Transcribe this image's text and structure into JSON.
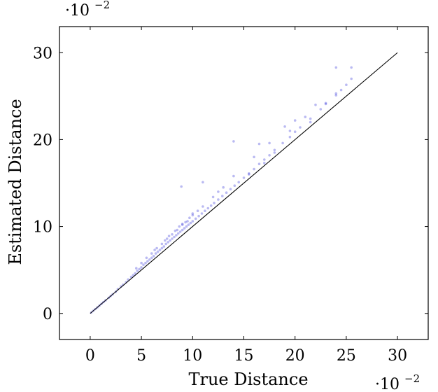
{
  "chart_data": {
    "type": "scatter",
    "title": "",
    "xlabel": "True Distance",
    "ylabel": "Estimated Distance",
    "x_scale_factor": "·10",
    "x_scale_exponent": "−2",
    "y_scale_factor": "·10",
    "y_scale_exponent": "−2",
    "xlim": [
      -3,
      33
    ],
    "ylim": [
      -3,
      33
    ],
    "xticks": [
      0,
      5,
      10,
      15,
      20,
      25,
      30
    ],
    "yticks": [
      0,
      10,
      20,
      30
    ],
    "xtick_labels": [
      "0",
      "5",
      "10",
      "15",
      "20",
      "25",
      "30"
    ],
    "ytick_labels": [
      "0",
      "10",
      "20",
      "30"
    ],
    "grid": false,
    "point_color": "#3a3adb",
    "line_color": "#000000",
    "reference_line": {
      "x": [
        0,
        30
      ],
      "y": [
        0,
        30
      ]
    },
    "series": [
      {
        "type": "scatter",
        "x": [
          0.1,
          0.3,
          0.5,
          0.7,
          0.9,
          1.1,
          1.3,
          1.5,
          1.8,
          2.0,
          2.2,
          2.5,
          2.7,
          3.0,
          3.2,
          3.5,
          3.7,
          4.0,
          4.2,
          4.4,
          4.6,
          4.8,
          5.0,
          5.2,
          5.4,
          5.6,
          5.8,
          6.0,
          6.2,
          6.4,
          6.6,
          6.8,
          7.0,
          7.2,
          7.4,
          7.6,
          7.8,
          8.0,
          8.2,
          8.4,
          8.6,
          8.8,
          9.0,
          9.2,
          9.4,
          9.6,
          9.8,
          10.0,
          10.3,
          10.6,
          10.9,
          11.2,
          11.5,
          11.8,
          12.1,
          12.5,
          12.9,
          13.3,
          13.7,
          14.1,
          14.5,
          15.0,
          15.5,
          16.0,
          16.5,
          17.0,
          17.5,
          18.0,
          18.8,
          19.5,
          20.0,
          20.5,
          21.5,
          22.5,
          23.0,
          24.0,
          24.5,
          25.0,
          25.5,
          4.5,
          5.5,
          6.5,
          7.5,
          8.5,
          9.5,
          5.0,
          6.0,
          7.0,
          8.0,
          9.0,
          10.0,
          11.0,
          12.0,
          6.3,
          7.3,
          8.3,
          9.3,
          10.5,
          7.7,
          8.7,
          9.7,
          13.0,
          14.0,
          16.0,
          17.5,
          19.0,
          20.0,
          21.0,
          22.0,
          23.0,
          24.0,
          24.0,
          25.5,
          8.9,
          11.0,
          14.0,
          15.5,
          17.0,
          18.0,
          9.0,
          10.0,
          12.5,
          16.5,
          19.5,
          21.5
        ],
        "y": [
          0.1,
          0.3,
          0.5,
          0.7,
          0.9,
          1.1,
          1.3,
          1.5,
          1.8,
          2.0,
          2.2,
          2.5,
          2.8,
          3.1,
          3.3,
          3.6,
          3.9,
          4.2,
          4.4,
          4.6,
          4.9,
          5.1,
          5.3,
          5.6,
          5.8,
          6.0,
          6.2,
          6.4,
          6.6,
          6.9,
          7.1,
          7.3,
          7.5,
          7.7,
          8.0,
          8.2,
          8.4,
          8.6,
          8.8,
          9.0,
          9.2,
          9.4,
          9.6,
          9.8,
          10.0,
          10.2,
          10.4,
          10.6,
          10.9,
          11.2,
          11.5,
          11.8,
          12.1,
          12.4,
          12.7,
          13.1,
          13.5,
          13.9,
          14.3,
          14.7,
          15.1,
          15.6,
          16.1,
          16.6,
          17.2,
          17.7,
          18.2,
          18.8,
          19.6,
          20.3,
          20.9,
          21.4,
          22.4,
          23.5,
          24.1,
          25.1,
          25.7,
          26.3,
          27.0,
          5.2,
          6.4,
          7.5,
          8.6,
          9.6,
          10.6,
          5.8,
          6.9,
          8.0,
          9.1,
          10.2,
          11.3,
          12.3,
          13.4,
          7.3,
          8.4,
          9.5,
          10.5,
          11.8,
          8.9,
          10.0,
          11.0,
          14.5,
          15.8,
          18.0,
          19.6,
          21.5,
          22.2,
          22.6,
          24.0,
          24.2,
          25.3,
          28.3,
          28.3,
          14.6,
          15.1,
          19.8,
          16.0,
          17.3,
          18.5,
          10.3,
          11.5,
          14.0,
          19.5,
          21.0,
          22.0
        ]
      }
    ]
  }
}
